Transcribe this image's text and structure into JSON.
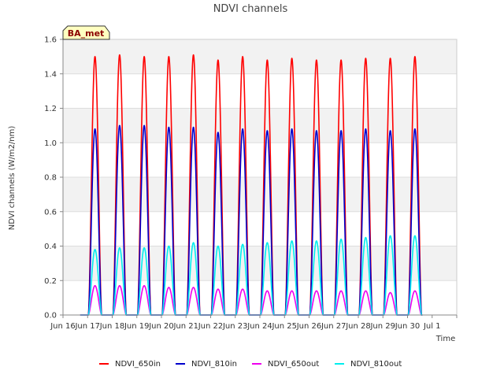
{
  "chart_data": {
    "type": "line",
    "title": "NDVI channels",
    "xlabel": "Time",
    "ylabel": "NDVI channels (W/m2/nm)",
    "badge": "BA_met",
    "xlim": [
      0,
      16
    ],
    "ylim": [
      0,
      1.6
    ],
    "y_ticks": [
      0.0,
      0.2,
      0.4,
      0.6,
      0.8,
      1.0,
      1.2,
      1.4,
      1.6
    ],
    "y_tick_labels": [
      "0.0",
      "0.2",
      "0.4",
      "0.6",
      "0.8",
      "1.0",
      "1.2",
      "1.4",
      "1.6"
    ],
    "x_ticks": [
      0,
      1,
      2,
      3,
      4,
      5,
      6,
      7,
      8,
      9,
      10,
      11,
      12,
      13,
      14,
      15,
      16
    ],
    "x_tick_labels": [
      "Jun 16",
      "Jun 17",
      "Jun 18",
      "Jun 19",
      "Jun 20",
      "Jun 21",
      "Jun 22",
      "Jun 23",
      "Jun 24",
      "Jun 25",
      "Jun 26",
      "Jun 27",
      "Jun 28",
      "Jun 29",
      "Jun 30",
      "Jul 1",
      ""
    ],
    "x_tick_label_display": [
      "Jun 16",
      "Jun 17",
      "Jun 18",
      "Jun 19",
      "Jun 20",
      "Jun 21",
      "Jun 22",
      "Jun 23",
      "Jun 24",
      "Jun 25",
      "Jun 26",
      "Jun 27",
      "Jun 28",
      "Jun 29",
      "Jun 30",
      "Jul 1"
    ],
    "day_centers": [
      1.3,
      2.3,
      3.3,
      4.3,
      5.3,
      6.3,
      7.3,
      8.3,
      9.3,
      10.3,
      11.3,
      12.3,
      13.3,
      14.3
    ],
    "series": [
      {
        "name": "NDVI_650in",
        "color": "#ff0000",
        "peaks": [
          1.5,
          1.51,
          1.5,
          1.5,
          1.51,
          1.48,
          1.5,
          1.48,
          1.49,
          1.48,
          1.48,
          1.49,
          1.49,
          1.5
        ]
      },
      {
        "name": "NDVI_810in",
        "color": "#0000cc",
        "peaks": [
          1.08,
          1.1,
          1.1,
          1.09,
          1.09,
          1.06,
          1.08,
          1.07,
          1.08,
          1.07,
          1.07,
          1.08,
          1.07,
          1.08
        ]
      },
      {
        "name": "NDVI_650out",
        "color": "#ee00ee",
        "peaks": [
          0.17,
          0.17,
          0.17,
          0.16,
          0.16,
          0.15,
          0.15,
          0.14,
          0.14,
          0.14,
          0.14,
          0.14,
          0.13,
          0.14
        ]
      },
      {
        "name": "NDVI_810out",
        "color": "#00eeee",
        "peaks": [
          0.38,
          0.39,
          0.39,
          0.4,
          0.42,
          0.4,
          0.41,
          0.42,
          0.43,
          0.43,
          0.44,
          0.45,
          0.46,
          0.46
        ]
      }
    ],
    "legend_position": "bottom",
    "grid": true
  }
}
